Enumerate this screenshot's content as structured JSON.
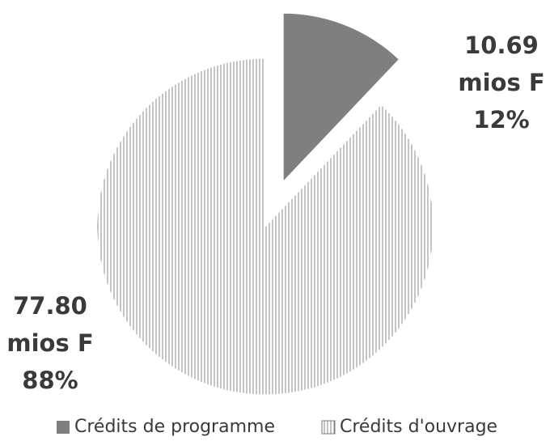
{
  "chart_data": {
    "type": "pie",
    "categories": [
      "Crédits de programme",
      "Crédits d'ouvrage"
    ],
    "values": [
      10.69,
      77.8
    ],
    "value_labels": [
      "10.69",
      "77.80"
    ],
    "unit": "mios F",
    "percent_labels": [
      "12%",
      "88%"
    ],
    "colors": [
      "#7f7f7f",
      "hatch"
    ],
    "explode": [
      true,
      false
    ],
    "legend": "bottom"
  }
}
